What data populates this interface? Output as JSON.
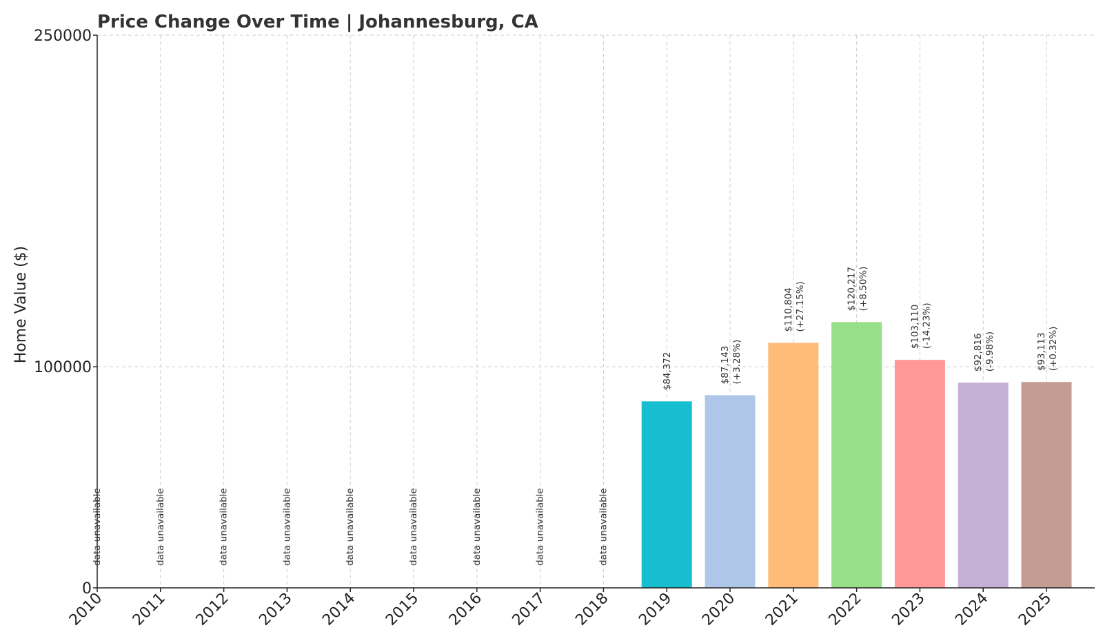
{
  "chart_data": {
    "type": "bar",
    "title": "Price Change Over Time | Johannesburg, CA",
    "xlabel": "",
    "ylabel": "Home Value ($)",
    "ylim": [
      0,
      250000
    ],
    "yticks": [
      "0",
      "100000",
      "250000"
    ],
    "ytick_values": [
      0,
      100000,
      250000
    ],
    "grid": true,
    "categories": [
      "2010",
      "2011",
      "2012",
      "2013",
      "2014",
      "2015",
      "2016",
      "2017",
      "2018",
      "2019",
      "2020",
      "2021",
      "2022",
      "2023",
      "2024",
      "2025"
    ],
    "values": [
      null,
      null,
      null,
      null,
      null,
      null,
      null,
      null,
      null,
      84372,
      87143,
      110804,
      120217,
      103110,
      92816,
      93113
    ],
    "value_labels": [
      "",
      "",
      "",
      "",
      "",
      "",
      "",
      "",
      "",
      "$84,372",
      "$87,143",
      "$110,804",
      "$120,217",
      "$103,110",
      "$92,816",
      "$93,113"
    ],
    "change_labels": [
      "",
      "",
      "",
      "",
      "",
      "",
      "",
      "",
      "",
      "",
      "(+3.28%)",
      "(+27.15%)",
      "(+8.50%)",
      "(-14.23%)",
      "(-9.98%)",
      "(+0.32%)"
    ],
    "missing_label": "data unavailable",
    "colors": [
      "#17becf",
      "#17becf",
      "#17becf",
      "#17becf",
      "#17becf",
      "#17becf",
      "#17becf",
      "#17becf",
      "#17becf",
      "#17becf",
      "#aec7e8",
      "#ffbb78",
      "#98df8a",
      "#ff9896",
      "#c5b0d5",
      "#c49c94"
    ]
  }
}
